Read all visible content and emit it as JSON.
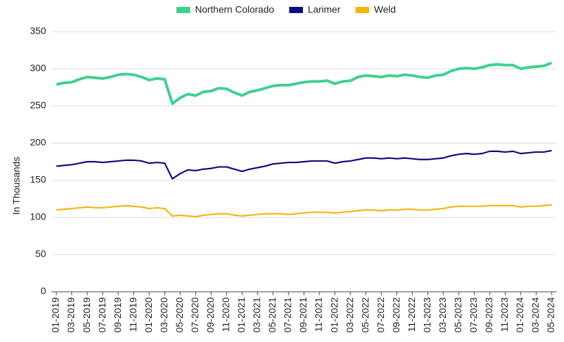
{
  "chart_data": {
    "type": "line",
    "y_label": "In Thousands",
    "categories": [
      "01-2019",
      null,
      "03-2019",
      null,
      "05-2019",
      null,
      "07-2019",
      null,
      "09-2019",
      null,
      "11-2019",
      null,
      "01-2020",
      null,
      "03-2020",
      null,
      "05-2020",
      null,
      "07-2020",
      null,
      "09-2020",
      null,
      "11-2020",
      null,
      "01-2021",
      null,
      "03-2021",
      null,
      "05-2021",
      null,
      "07-2021",
      null,
      "09-2021",
      null,
      "11-2021",
      null,
      "01-2022",
      null,
      "03-2022",
      null,
      "05-2022",
      null,
      "07-2022",
      null,
      "09-2022",
      null,
      "11-2022",
      null,
      "01-2023",
      null,
      "03-2023",
      null,
      "05-2023",
      null,
      "07-2023",
      null,
      "09-2023",
      null,
      "11-2023",
      null,
      "01-2024",
      null,
      "03-2024",
      null,
      "05-2024"
    ],
    "series": [
      {
        "name": "Northern Colorado",
        "color": "#3fd08f",
        "values": [
          279,
          281,
          282,
          286,
          289,
          288,
          287,
          289,
          292,
          293,
          292,
          289,
          285,
          287,
          286,
          253,
          261,
          266,
          264,
          269,
          270,
          274,
          273,
          268,
          264,
          269,
          271,
          274,
          277,
          278,
          278,
          280,
          282,
          283,
          283,
          284,
          280,
          283,
          284,
          289,
          291,
          290,
          289,
          291,
          290,
          292,
          291,
          289,
          288,
          291,
          292,
          297,
          300,
          301,
          300,
          302,
          305,
          306,
          305,
          305,
          300,
          302,
          303,
          304,
          308
        ]
      },
      {
        "name": "Larimer",
        "color": "#0b0b7e",
        "values": [
          169,
          170,
          171,
          173,
          175,
          175,
          174,
          175,
          176,
          177,
          177,
          176,
          173,
          174,
          173,
          152,
          159,
          164,
          163,
          165,
          166,
          168,
          168,
          165,
          162,
          165,
          167,
          169,
          172,
          173,
          174,
          174,
          175,
          176,
          176,
          176,
          173,
          175,
          176,
          178,
          180,
          180,
          179,
          180,
          179,
          180,
          179,
          178,
          178,
          179,
          180,
          183,
          185,
          186,
          185,
          186,
          189,
          189,
          188,
          189,
          186,
          187,
          188,
          188,
          190
        ]
      },
      {
        "name": "Weld",
        "color": "#f2b710",
        "values": [
          110,
          111,
          112,
          113,
          114,
          113,
          113,
          114,
          115,
          116,
          115,
          114,
          112,
          113,
          112,
          102,
          103,
          102,
          101,
          103,
          104,
          105,
          105,
          103,
          102,
          103,
          104,
          105,
          105,
          105,
          104,
          105,
          106,
          107,
          107,
          107,
          106,
          107,
          108,
          109,
          110,
          110,
          109,
          110,
          110,
          111,
          111,
          110,
          110,
          111,
          112,
          114,
          115,
          115,
          115,
          115,
          116,
          116,
          116,
          116,
          114,
          115,
          115,
          116,
          117
        ]
      }
    ],
    "ylim": [
      0,
      350
    ],
    "yticks": [
      0,
      50,
      100,
      150,
      200,
      250,
      300,
      350
    ],
    "grid": true
  }
}
